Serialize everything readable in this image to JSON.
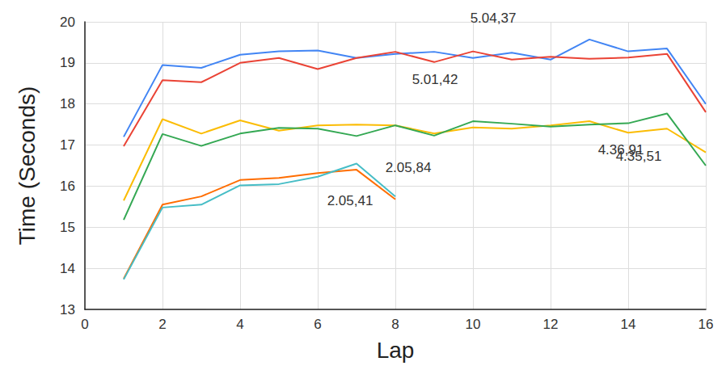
{
  "chart_data": {
    "type": "line",
    "x_label": "Lap",
    "y_label": "Time (Seconds)",
    "x": [
      1,
      2,
      3,
      4,
      5,
      6,
      7,
      8,
      9,
      10,
      11,
      12,
      13,
      14,
      15,
      16
    ],
    "xlim": [
      0,
      16
    ],
    "xticks": [
      0,
      2,
      4,
      6,
      8,
      10,
      12,
      14,
      16
    ],
    "ylim": [
      13,
      20
    ],
    "yticks": [
      13,
      14,
      15,
      16,
      17,
      18,
      19,
      20
    ],
    "grid": true,
    "series": [
      {
        "color": "#4285f4",
        "values": [
          17.2,
          18.95,
          18.88,
          19.2,
          19.28,
          19.3,
          19.12,
          19.22,
          19.27,
          19.12,
          19.25,
          19.08,
          19.57,
          19.28,
          19.35,
          18.0
        ]
      },
      {
        "color": "#ea4335",
        "values": [
          16.97,
          18.58,
          18.53,
          19.0,
          19.12,
          18.85,
          19.12,
          19.27,
          19.02,
          19.28,
          19.08,
          19.15,
          19.1,
          19.13,
          19.22,
          17.8
        ]
      },
      {
        "color": "#fbbc04",
        "values": [
          15.65,
          17.63,
          17.28,
          17.6,
          17.35,
          17.48,
          17.5,
          17.48,
          17.28,
          17.43,
          17.4,
          17.48,
          17.58,
          17.3,
          17.4,
          16.82
        ]
      },
      {
        "color": "#34a853",
        "values": [
          15.18,
          17.27,
          16.98,
          17.28,
          17.42,
          17.4,
          17.22,
          17.48,
          17.23,
          17.58,
          17.52,
          17.45,
          17.5,
          17.53,
          17.77,
          16.5
        ]
      },
      {
        "color": "#ff6d01",
        "values": [
          13.75,
          15.55,
          15.75,
          16.15,
          16.2,
          16.32,
          16.4,
          15.68,
          null,
          null,
          null,
          null,
          null,
          null,
          null,
          null
        ]
      },
      {
        "color": "#46bdc6",
        "values": [
          13.73,
          15.48,
          15.55,
          16.02,
          16.05,
          16.23,
          16.55,
          15.75,
          null,
          null,
          null,
          null,
          null,
          null,
          null,
          null
        ]
      }
    ],
    "annotations": [
      "5.04,37",
      "5.01,42",
      "4.36,91",
      "4.35,51",
      "2.05,84",
      "2.05,41"
    ]
  }
}
